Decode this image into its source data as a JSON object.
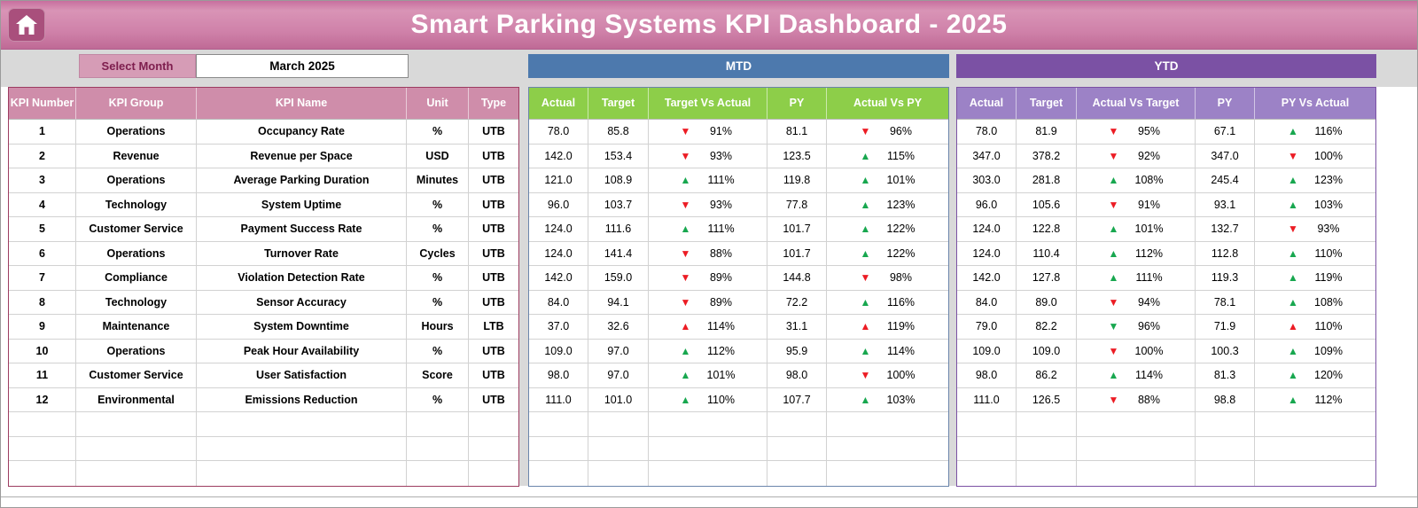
{
  "title": "Smart Parking Systems KPI Dashboard - 2025",
  "icons": {
    "trend_up": "▲",
    "trend_down": "▼",
    "home": "house-glyph"
  },
  "controls": {
    "select_month_label": "Select Month",
    "selected_month": "March 2025"
  },
  "tables": {
    "left": {
      "headers": [
        "KPI Number",
        "KPI Group",
        "KPI Name",
        "Unit",
        "Type"
      ]
    },
    "mtd": {
      "label": "MTD",
      "headers": [
        "Actual",
        "Target",
        "Target Vs Actual",
        "PY",
        "Actual Vs PY"
      ]
    },
    "ytd": {
      "label": "YTD",
      "headers": [
        "Actual",
        "Target",
        "Actual Vs Target",
        "PY",
        "PY Vs Actual"
      ]
    }
  },
  "rows": [
    {
      "num": "1",
      "group": "Operations",
      "name": "Occupancy Rate",
      "unit": "%",
      "type": "UTB",
      "mtd": {
        "actual": "78.0",
        "target": "85.8",
        "tva": {
          "dir": "down",
          "color": "red",
          "pct": "91%"
        },
        "py": "81.1",
        "avp": {
          "dir": "down",
          "color": "red",
          "pct": "96%"
        }
      },
      "ytd": {
        "actual": "78.0",
        "target": "81.9",
        "avt": {
          "dir": "down",
          "color": "red",
          "pct": "95%"
        },
        "py": "67.1",
        "pva": {
          "dir": "up",
          "color": "green",
          "pct": "116%"
        }
      }
    },
    {
      "num": "2",
      "group": "Revenue",
      "name": "Revenue per Space",
      "unit": "USD",
      "type": "UTB",
      "mtd": {
        "actual": "142.0",
        "target": "153.4",
        "tva": {
          "dir": "down",
          "color": "red",
          "pct": "93%"
        },
        "py": "123.5",
        "avp": {
          "dir": "up",
          "color": "green",
          "pct": "115%"
        }
      },
      "ytd": {
        "actual": "347.0",
        "target": "378.2",
        "avt": {
          "dir": "down",
          "color": "red",
          "pct": "92%"
        },
        "py": "347.0",
        "pva": {
          "dir": "down",
          "color": "red",
          "pct": "100%"
        }
      }
    },
    {
      "num": "3",
      "group": "Operations",
      "name": "Average Parking Duration",
      "unit": "Minutes",
      "type": "UTB",
      "mtd": {
        "actual": "121.0",
        "target": "108.9",
        "tva": {
          "dir": "up",
          "color": "green",
          "pct": "111%"
        },
        "py": "119.8",
        "avp": {
          "dir": "up",
          "color": "green",
          "pct": "101%"
        }
      },
      "ytd": {
        "actual": "303.0",
        "target": "281.8",
        "avt": {
          "dir": "up",
          "color": "green",
          "pct": "108%"
        },
        "py": "245.4",
        "pva": {
          "dir": "up",
          "color": "green",
          "pct": "123%"
        }
      }
    },
    {
      "num": "4",
      "group": "Technology",
      "name": "System Uptime",
      "unit": "%",
      "type": "UTB",
      "mtd": {
        "actual": "96.0",
        "target": "103.7",
        "tva": {
          "dir": "down",
          "color": "red",
          "pct": "93%"
        },
        "py": "77.8",
        "avp": {
          "dir": "up",
          "color": "green",
          "pct": "123%"
        }
      },
      "ytd": {
        "actual": "96.0",
        "target": "105.6",
        "avt": {
          "dir": "down",
          "color": "red",
          "pct": "91%"
        },
        "py": "93.1",
        "pva": {
          "dir": "up",
          "color": "green",
          "pct": "103%"
        }
      }
    },
    {
      "num": "5",
      "group": "Customer Service",
      "name": "Payment Success Rate",
      "unit": "%",
      "type": "UTB",
      "mtd": {
        "actual": "124.0",
        "target": "111.6",
        "tva": {
          "dir": "up",
          "color": "green",
          "pct": "111%"
        },
        "py": "101.7",
        "avp": {
          "dir": "up",
          "color": "green",
          "pct": "122%"
        }
      },
      "ytd": {
        "actual": "124.0",
        "target": "122.8",
        "avt": {
          "dir": "up",
          "color": "green",
          "pct": "101%"
        },
        "py": "132.7",
        "pva": {
          "dir": "down",
          "color": "red",
          "pct": "93%"
        }
      }
    },
    {
      "num": "6",
      "group": "Operations",
      "name": "Turnover Rate",
      "unit": "Cycles",
      "type": "UTB",
      "mtd": {
        "actual": "124.0",
        "target": "141.4",
        "tva": {
          "dir": "down",
          "color": "red",
          "pct": "88%"
        },
        "py": "101.7",
        "avp": {
          "dir": "up",
          "color": "green",
          "pct": "122%"
        }
      },
      "ytd": {
        "actual": "124.0",
        "target": "110.4",
        "avt": {
          "dir": "up",
          "color": "green",
          "pct": "112%"
        },
        "py": "112.8",
        "pva": {
          "dir": "up",
          "color": "green",
          "pct": "110%"
        }
      }
    },
    {
      "num": "7",
      "group": "Compliance",
      "name": "Violation Detection Rate",
      "unit": "%",
      "type": "UTB",
      "mtd": {
        "actual": "142.0",
        "target": "159.0",
        "tva": {
          "dir": "down",
          "color": "red",
          "pct": "89%"
        },
        "py": "144.8",
        "avp": {
          "dir": "down",
          "color": "red",
          "pct": "98%"
        }
      },
      "ytd": {
        "actual": "142.0",
        "target": "127.8",
        "avt": {
          "dir": "up",
          "color": "green",
          "pct": "111%"
        },
        "py": "119.3",
        "pva": {
          "dir": "up",
          "color": "green",
          "pct": "119%"
        }
      }
    },
    {
      "num": "8",
      "group": "Technology",
      "name": "Sensor Accuracy",
      "unit": "%",
      "type": "UTB",
      "mtd": {
        "actual": "84.0",
        "target": "94.1",
        "tva": {
          "dir": "down",
          "color": "red",
          "pct": "89%"
        },
        "py": "72.2",
        "avp": {
          "dir": "up",
          "color": "green",
          "pct": "116%"
        }
      },
      "ytd": {
        "actual": "84.0",
        "target": "89.0",
        "avt": {
          "dir": "down",
          "color": "red",
          "pct": "94%"
        },
        "py": "78.1",
        "pva": {
          "dir": "up",
          "color": "green",
          "pct": "108%"
        }
      }
    },
    {
      "num": "9",
      "group": "Maintenance",
      "name": "System Downtime",
      "unit": "Hours",
      "type": "LTB",
      "mtd": {
        "actual": "37.0",
        "target": "32.6",
        "tva": {
          "dir": "up",
          "color": "red",
          "pct": "114%"
        },
        "py": "31.1",
        "avp": {
          "dir": "up",
          "color": "red",
          "pct": "119%"
        }
      },
      "ytd": {
        "actual": "79.0",
        "target": "82.2",
        "avt": {
          "dir": "down",
          "color": "green",
          "pct": "96%"
        },
        "py": "71.9",
        "pva": {
          "dir": "up",
          "color": "red",
          "pct": "110%"
        }
      }
    },
    {
      "num": "10",
      "group": "Operations",
      "name": "Peak Hour Availability",
      "unit": "%",
      "type": "UTB",
      "mtd": {
        "actual": "109.0",
        "target": "97.0",
        "tva": {
          "dir": "up",
          "color": "green",
          "pct": "112%"
        },
        "py": "95.9",
        "avp": {
          "dir": "up",
          "color": "green",
          "pct": "114%"
        }
      },
      "ytd": {
        "actual": "109.0",
        "target": "109.0",
        "avt": {
          "dir": "down",
          "color": "red",
          "pct": "100%"
        },
        "py": "100.3",
        "pva": {
          "dir": "up",
          "color": "green",
          "pct": "109%"
        }
      }
    },
    {
      "num": "11",
      "group": "Customer Service",
      "name": "User Satisfaction",
      "unit": "Score",
      "type": "UTB",
      "mtd": {
        "actual": "98.0",
        "target": "97.0",
        "tva": {
          "dir": "up",
          "color": "green",
          "pct": "101%"
        },
        "py": "98.0",
        "avp": {
          "dir": "down",
          "color": "red",
          "pct": "100%"
        }
      },
      "ytd": {
        "actual": "98.0",
        "target": "86.2",
        "avt": {
          "dir": "up",
          "color": "green",
          "pct": "114%"
        },
        "py": "81.3",
        "pva": {
          "dir": "up",
          "color": "green",
          "pct": "120%"
        }
      }
    },
    {
      "num": "12",
      "group": "Environmental",
      "name": "Emissions Reduction",
      "unit": "%",
      "type": "UTB",
      "mtd": {
        "actual": "111.0",
        "target": "101.0",
        "tva": {
          "dir": "up",
          "color": "green",
          "pct": "110%"
        },
        "py": "107.7",
        "avp": {
          "dir": "up",
          "color": "green",
          "pct": "103%"
        }
      },
      "ytd": {
        "actual": "111.0",
        "target": "126.5",
        "avt": {
          "dir": "down",
          "color": "red",
          "pct": "88%"
        },
        "py": "98.8",
        "pva": {
          "dir": "up",
          "color": "green",
          "pct": "112%"
        }
      }
    }
  ],
  "empty_row_count": 3,
  "colors": {
    "titlebar_pink": "#cc7ba4",
    "table_header_pink": "#cf8daa",
    "mtd_band_blue": "#4d79ad",
    "mtd_subheader_green": "#8dce49",
    "ytd_band_purple": "#7b51a4",
    "ytd_subheader_purple": "#9c82c6",
    "trend_up_green": "#18a74f",
    "trend_down_red": "#ec1c24",
    "select_month_pink": "#d69cb6"
  }
}
